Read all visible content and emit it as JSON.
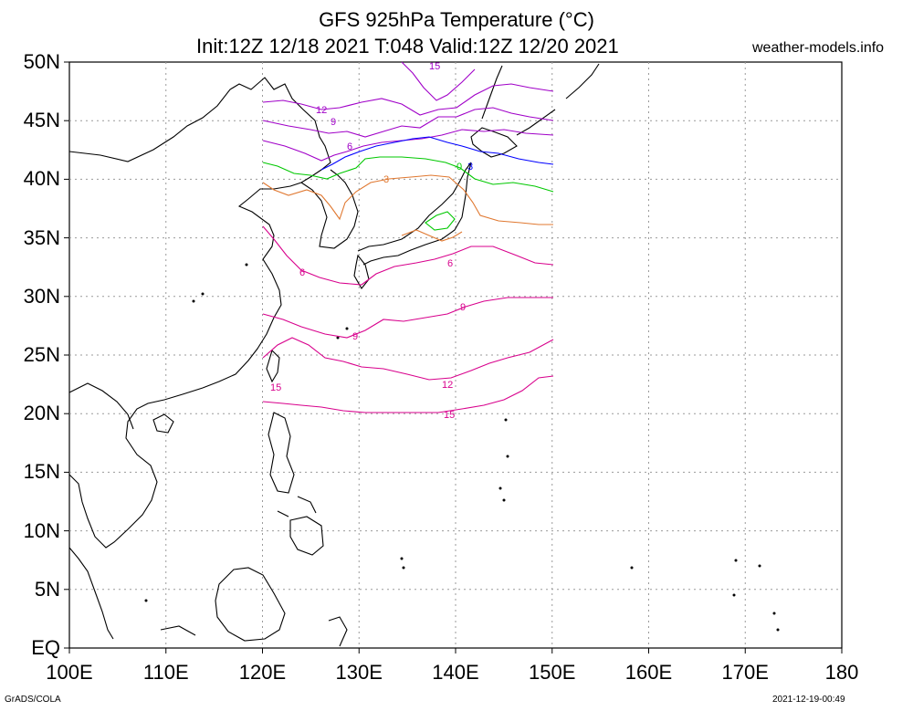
{
  "header": {
    "title": "GFS 925hPa Temperature (°C)",
    "subtitle": "Init:12Z 12/18 2021 T:048 Valid:12Z 12/20 2021",
    "site": "weather-models.info"
  },
  "footer": {
    "left": "GrADS/COLA",
    "right": "2021-12-19-00:49"
  },
  "axes": {
    "lat_labels": [
      "50N",
      "45N",
      "40N",
      "35N",
      "30N",
      "25N",
      "20N",
      "15N",
      "10N",
      "5N",
      "EQ"
    ],
    "lon_labels": [
      "100E",
      "110E",
      "120E",
      "130E",
      "140E",
      "150E",
      "160E",
      "170E",
      "180"
    ]
  },
  "contours": [
    {
      "value": 15,
      "label": "15",
      "color": "#a000c8",
      "region": "north"
    },
    {
      "value": 12,
      "label": "12",
      "color": "#a000c8",
      "region": "north"
    },
    {
      "value": 9,
      "label": "9",
      "color": "#a000c8",
      "region": "north"
    },
    {
      "value": 6,
      "label": "6",
      "color": "#a000c8",
      "region": "north"
    },
    {
      "value": 3,
      "label": "3",
      "color": "#0000ff",
      "region": "north"
    },
    {
      "value": 0,
      "label": "0",
      "color": "#00c800"
    },
    {
      "value": 3,
      "label": "3",
      "color": "#e07830"
    },
    {
      "value": 6,
      "label": "6",
      "color": "#d8008c"
    },
    {
      "value": 9,
      "label": "9",
      "color": "#d8008c"
    },
    {
      "value": 12,
      "label": "12",
      "color": "#d8008c"
    },
    {
      "value": 15,
      "label": "15",
      "color": "#d8008c"
    }
  ],
  "colors": {
    "coast": "#000000",
    "grid": "#9a9a9a",
    "purple": "#a000c8",
    "blue": "#0000ff",
    "green": "#00c800",
    "orange": "#e07830",
    "magenta": "#d8008c"
  }
}
